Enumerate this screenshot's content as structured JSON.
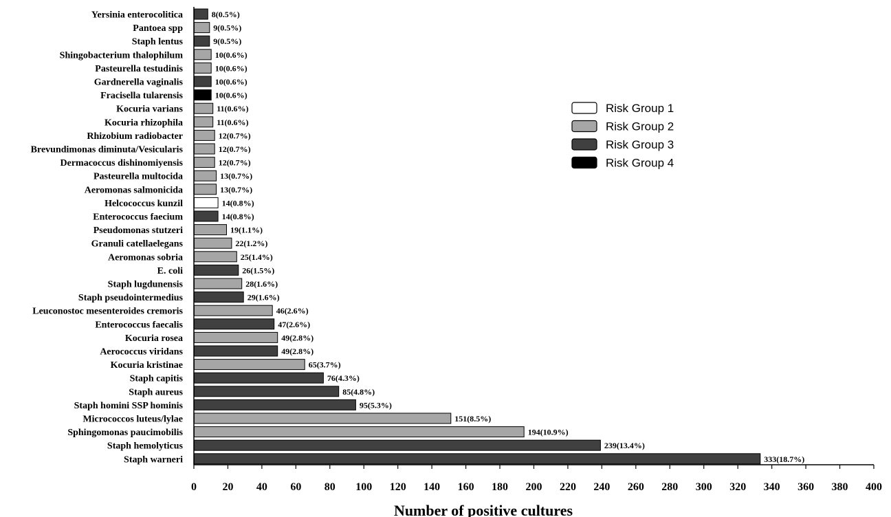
{
  "chart_data": {
    "type": "bar",
    "orientation": "horizontal",
    "xlabel": "Number of positive cultures",
    "ylabel": "",
    "xlim": [
      0,
      400
    ],
    "xticks": [
      "0",
      "20",
      "40",
      "60",
      "80",
      "100",
      "120",
      "140",
      "160",
      "180",
      "200",
      "220",
      "240",
      "260",
      "280",
      "300",
      "320",
      "340",
      "360",
      "380",
      "400"
    ],
    "legend_position": "right",
    "legend": [
      {
        "label": "Risk Group 1",
        "color": "#ffffff"
      },
      {
        "label": "Risk Group 2",
        "color": "#a6a6a6"
      },
      {
        "label": "Risk Group 3",
        "color": "#404040"
      },
      {
        "label": "Risk Group 4",
        "color": "#000000"
      }
    ],
    "categories": [
      {
        "name": "Yersinia enterocolitica",
        "value": 8,
        "label": "8(0.5%)",
        "group": 3
      },
      {
        "name": "Pantoea spp",
        "value": 9,
        "label": "9(0.5%)",
        "group": 2
      },
      {
        "name": "Staph lentus",
        "value": 9,
        "label": "9(0.5%)",
        "group": 3
      },
      {
        "name": "Shingobacterium thalophilum",
        "value": 10,
        "label": "10(0.6%)",
        "group": 2
      },
      {
        "name": "Pasteurella testudinis",
        "value": 10,
        "label": "10(0.6%)",
        "group": 2
      },
      {
        "name": "Gardnerella vaginalis",
        "value": 10,
        "label": "10(0.6%)",
        "group": 3
      },
      {
        "name": "Fracisella tularensis",
        "value": 10,
        "label": "10(0.6%)",
        "group": 4
      },
      {
        "name": "Kocuria varians",
        "value": 11,
        "label": "11(0.6%)",
        "group": 2
      },
      {
        "name": "Kocuria rhizophila",
        "value": 11,
        "label": "11(0.6%)",
        "group": 2
      },
      {
        "name": "Rhizobium radiobacter",
        "value": 12,
        "label": "12(0.7%)",
        "group": 2
      },
      {
        "name": "Brevundimonas diminuta/Vesicularis",
        "value": 12,
        "label": "12(0.7%)",
        "group": 2
      },
      {
        "name": "Dermacoccus dishinomiyensis",
        "value": 12,
        "label": "12(0.7%)",
        "group": 2
      },
      {
        "name": "Pasteurella multocida",
        "value": 13,
        "label": "13(0.7%)",
        "group": 2
      },
      {
        "name": "Aeromonas salmonicida",
        "value": 13,
        "label": "13(0.7%)",
        "group": 2
      },
      {
        "name": "Helcococcus kunzil",
        "value": 14,
        "label": "14(0.8%)",
        "group": 1
      },
      {
        "name": "Enterococcus faecium",
        "value": 14,
        "label": "14(0.8%)",
        "group": 3
      },
      {
        "name": "Pseudomonas stutzeri",
        "value": 19,
        "label": "19(1.1%)",
        "group": 2
      },
      {
        "name": "Granuli catellaelegans",
        "value": 22,
        "label": "22(1.2%)",
        "group": 2
      },
      {
        "name": "Aeromonas sobria",
        "value": 25,
        "label": "25(1.4%)",
        "group": 2
      },
      {
        "name": "E. coli",
        "value": 26,
        "label": "26(1.5%)",
        "group": 3
      },
      {
        "name": "Staph lugdunensis",
        "value": 28,
        "label": "28(1.6%)",
        "group": 2
      },
      {
        "name": "Staph pseudointermedius",
        "value": 29,
        "label": "29(1.6%)",
        "group": 3
      },
      {
        "name": "Leuconostoc mesenteroides cremoris",
        "value": 46,
        "label": "46(2.6%)",
        "group": 2
      },
      {
        "name": "Enterococcus faecalis",
        "value": 47,
        "label": "47(2.6%)",
        "group": 3
      },
      {
        "name": "Kocuria rosea",
        "value": 49,
        "label": "49(2.8%)",
        "group": 2
      },
      {
        "name": "Aerococcus viridans",
        "value": 49,
        "label": "49(2.8%)",
        "group": 3
      },
      {
        "name": "Kocuria kristinae",
        "value": 65,
        "label": "65(3.7%)",
        "group": 2
      },
      {
        "name": "Staph capitis",
        "value": 76,
        "label": "76(4.3%)",
        "group": 3
      },
      {
        "name": "Staph aureus",
        "value": 85,
        "label": "85(4.8%)",
        "group": 3
      },
      {
        "name": "Staph homini SSP hominis",
        "value": 95,
        "label": "95(5.3%)",
        "group": 3
      },
      {
        "name": "Micrococcos luteus/lylae",
        "value": 151,
        "label": "151(8.5%)",
        "group": 2
      },
      {
        "name": "Sphingomonas paucimobilis",
        "value": 194,
        "label": "194(10.9%)",
        "group": 2
      },
      {
        "name": "Staph hemolyticus",
        "value": 239,
        "label": "239(13.4%)",
        "group": 3
      },
      {
        "name": "Staph warneri",
        "value": 333,
        "label": "333(18.7%)",
        "group": 3
      }
    ]
  }
}
